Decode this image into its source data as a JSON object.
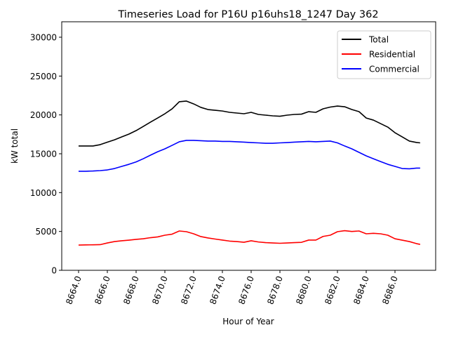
{
  "chart_data": {
    "type": "line",
    "title": "Timeseries Load for P16U p16uhs18_1247  Day 362",
    "xlabel": "Hour of Year",
    "ylabel": "kW total",
    "xlim": [
      8662.8,
      8688.8
    ],
    "ylim": [
      0,
      31500
    ],
    "xticks": [
      8664,
      8666,
      8668,
      8670,
      8672,
      8674,
      8676,
      8678,
      8680,
      8682,
      8684,
      8686
    ],
    "xtick_labels": [
      "8664.0",
      "8666.0",
      "8668.0",
      "8670.0",
      "8672.0",
      "8674.0",
      "8676.0",
      "8678.0",
      "8680.0",
      "8682.0",
      "8684.0",
      "8686.0"
    ],
    "yticks": [
      0,
      5000,
      10000,
      15000,
      20000,
      25000,
      30000
    ],
    "ytick_labels": [
      "0",
      "5000",
      "10000",
      "15000",
      "20000",
      "25000",
      "30000"
    ],
    "grid": false,
    "legend_position": "top-right",
    "x": [
      8664.0,
      8664.5,
      8665.0,
      8665.5,
      8666.0,
      8666.5,
      8667.0,
      8667.5,
      8668.0,
      8668.5,
      8669.0,
      8669.5,
      8670.0,
      8670.5,
      8671.0,
      8671.5,
      8672.0,
      8672.5,
      8673.0,
      8673.5,
      8674.0,
      8674.5,
      8675.0,
      8675.5,
      8676.0,
      8676.5,
      8677.0,
      8677.5,
      8678.0,
      8678.5,
      8679.0,
      8679.5,
      8680.0,
      8680.5,
      8681.0,
      8681.5,
      8682.0,
      8682.5,
      8683.0,
      8683.5,
      8684.0,
      8684.5,
      8685.0,
      8685.5,
      8686.0,
      8686.5,
      8687.0,
      8687.5,
      8687.75
    ],
    "series": [
      {
        "name": "Total",
        "color": "#000000",
        "values": [
          16000,
          16000,
          16000,
          16170,
          16490,
          16800,
          17170,
          17530,
          17980,
          18520,
          19070,
          19600,
          20150,
          20780,
          21690,
          21780,
          21420,
          20970,
          20690,
          20600,
          20500,
          20330,
          20240,
          20150,
          20330,
          20060,
          19970,
          19880,
          19830,
          19970,
          20060,
          20100,
          20420,
          20330,
          20780,
          21010,
          21140,
          21050,
          20690,
          20420,
          19600,
          19330,
          18880,
          18430,
          17710,
          17170,
          16630,
          16450,
          16400
        ]
      },
      {
        "name": "Residential",
        "color": "#ff0000",
        "values": [
          3250,
          3270,
          3280,
          3300,
          3520,
          3700,
          3800,
          3880,
          3980,
          4060,
          4200,
          4300,
          4520,
          4650,
          5060,
          4970,
          4700,
          4340,
          4160,
          4020,
          3890,
          3760,
          3700,
          3610,
          3800,
          3650,
          3560,
          3520,
          3480,
          3520,
          3560,
          3600,
          3890,
          3890,
          4360,
          4520,
          4970,
          5100,
          5000,
          5060,
          4700,
          4760,
          4700,
          4520,
          4060,
          3880,
          3700,
          3430,
          3340
        ]
      },
      {
        "name": "Commercial",
        "color": "#0000ff",
        "values": [
          12750,
          12750,
          12780,
          12830,
          12920,
          13100,
          13370,
          13640,
          13950,
          14360,
          14820,
          15260,
          15630,
          16080,
          16540,
          16720,
          16720,
          16680,
          16630,
          16630,
          16590,
          16590,
          16540,
          16500,
          16440,
          16400,
          16350,
          16350,
          16400,
          16440,
          16500,
          16540,
          16590,
          16540,
          16590,
          16630,
          16400,
          16000,
          15630,
          15180,
          14730,
          14360,
          14000,
          13640,
          13370,
          13100,
          13060,
          13150,
          13150
        ]
      }
    ]
  }
}
